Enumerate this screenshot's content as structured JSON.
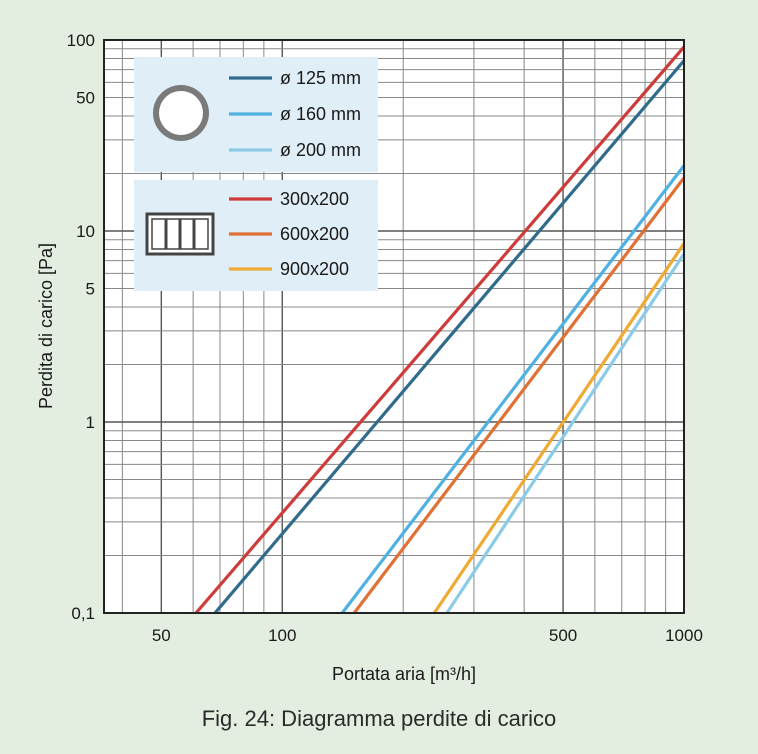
{
  "caption": "Fig. 24: Diagramma perdite di carico",
  "chart_data": {
    "type": "line",
    "x_scale": "log",
    "y_scale": "log",
    "xlim": [
      36,
      1000
    ],
    "ylim": [
      0.1,
      100
    ],
    "xlabel": "Portata aria [m³/h]",
    "ylabel": "Perdita di carico [Pa]",
    "x_ticks": [
      {
        "value": 50,
        "label": "50"
      },
      {
        "value": 100,
        "label": "100"
      },
      {
        "value": 500,
        "label": "500"
      },
      {
        "value": 1000,
        "label": "1000"
      }
    ],
    "y_ticks": [
      {
        "value": 0.1,
        "label": "0,1"
      },
      {
        "value": 1,
        "label": "1"
      },
      {
        "value": 5,
        "label": "5"
      },
      {
        "value": 10,
        "label": "10"
      },
      {
        "value": 50,
        "label": "50"
      },
      {
        "value": 100,
        "label": "100"
      }
    ],
    "grid": true,
    "legend_groups": [
      {
        "icon": "round-duct-icon",
        "series": [
          0,
          1,
          2
        ]
      },
      {
        "icon": "rectangular-duct-icon",
        "series": [
          3,
          4,
          5
        ]
      }
    ],
    "series": [
      {
        "name": "ø 125 mm",
        "color": "#2f6b8b",
        "x": [
          68,
          1000
        ],
        "y": [
          0.1,
          78
        ]
      },
      {
        "name": "ø 160 mm",
        "color": "#4fb1e2",
        "x": [
          141,
          1000
        ],
        "y": [
          0.1,
          22
        ]
      },
      {
        "name": "ø 200 mm",
        "color": "#8ccbe6",
        "x": [
          257,
          1000
        ],
        "y": [
          0.1,
          7.6
        ]
      },
      {
        "name": "300x200",
        "color": "#cf3b3a",
        "x": [
          61,
          1000
        ],
        "y": [
          0.1,
          92
        ]
      },
      {
        "name": "600x200",
        "color": "#e07034",
        "x": [
          151,
          1000
        ],
        "y": [
          0.1,
          19
        ]
      },
      {
        "name": "900x200",
        "color": "#eeaa33",
        "x": [
          239,
          1000
        ],
        "y": [
          0.1,
          8.6
        ]
      }
    ]
  }
}
